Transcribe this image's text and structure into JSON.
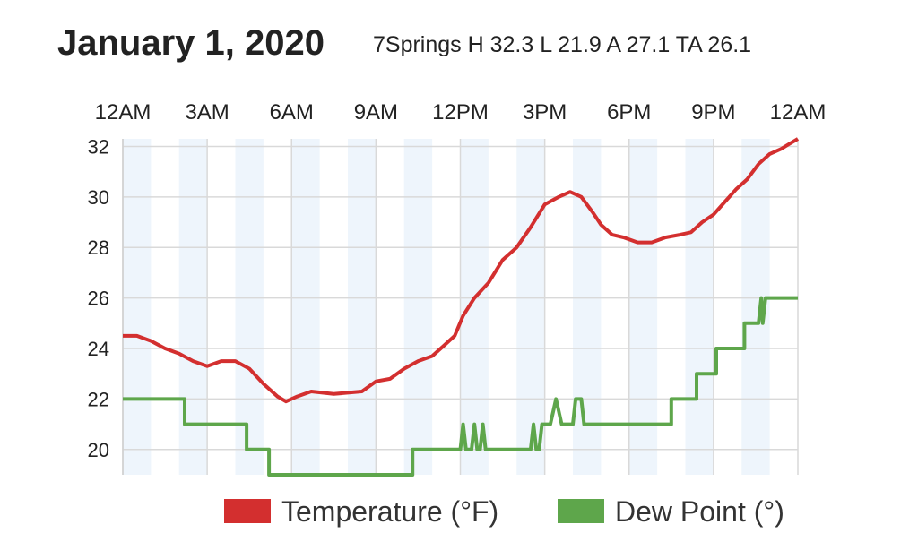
{
  "header": {
    "title": "January 1, 2020",
    "subtitle": "7Springs H 32.3 L 21.9 A 27.1 TA 26.1"
  },
  "colors": {
    "temperature": "#d32f2f",
    "dew_point": "#5ea64b",
    "band": "#eef5fc",
    "grid": "#d9d9d9"
  },
  "chart_data": {
    "type": "line",
    "title": "January 1, 2020",
    "subtitle": "7Springs H 32.3 L 21.9 A 27.1 TA 26.1",
    "x_ticks": [
      "12AM",
      "3AM",
      "6AM",
      "9AM",
      "12PM",
      "3PM",
      "6PM",
      "9PM",
      "12AM"
    ],
    "x_range_hours": [
      0,
      24
    ],
    "ylim": [
      19,
      32.3
    ],
    "y_ticks": [
      20,
      22,
      24,
      26,
      28,
      30,
      32
    ],
    "grid": true,
    "legend_position": "bottom",
    "series": [
      {
        "name": "Temperature (°F)",
        "color": "#d32f2f",
        "points": [
          [
            0,
            24.5
          ],
          [
            0.5,
            24.5
          ],
          [
            1,
            24.3
          ],
          [
            1.5,
            24.0
          ],
          [
            2,
            23.8
          ],
          [
            2.5,
            23.5
          ],
          [
            3,
            23.3
          ],
          [
            3.5,
            23.5
          ],
          [
            4,
            23.5
          ],
          [
            4.5,
            23.2
          ],
          [
            5,
            22.6
          ],
          [
            5.5,
            22.1
          ],
          [
            5.8,
            21.9
          ],
          [
            6.2,
            22.1
          ],
          [
            6.7,
            22.3
          ],
          [
            7.5,
            22.2
          ],
          [
            8.5,
            22.3
          ],
          [
            9,
            22.7
          ],
          [
            9.5,
            22.8
          ],
          [
            10,
            23.2
          ],
          [
            10.5,
            23.5
          ],
          [
            11,
            23.7
          ],
          [
            11.4,
            24.1
          ],
          [
            11.8,
            24.5
          ],
          [
            12.1,
            25.3
          ],
          [
            12.5,
            26.0
          ],
          [
            13,
            26.6
          ],
          [
            13.5,
            27.5
          ],
          [
            14,
            28.0
          ],
          [
            14.5,
            28.8
          ],
          [
            15,
            29.7
          ],
          [
            15.5,
            30.0
          ],
          [
            15.9,
            30.2
          ],
          [
            16.3,
            30.0
          ],
          [
            16.7,
            29.4
          ],
          [
            17,
            28.9
          ],
          [
            17.4,
            28.5
          ],
          [
            17.8,
            28.4
          ],
          [
            18.3,
            28.2
          ],
          [
            18.8,
            28.2
          ],
          [
            19.3,
            28.4
          ],
          [
            19.8,
            28.5
          ],
          [
            20.2,
            28.6
          ],
          [
            20.6,
            29.0
          ],
          [
            21,
            29.3
          ],
          [
            21.4,
            29.8
          ],
          [
            21.8,
            30.3
          ],
          [
            22.2,
            30.7
          ],
          [
            22.6,
            31.3
          ],
          [
            23,
            31.7
          ],
          [
            23.4,
            31.9
          ],
          [
            23.7,
            32.1
          ],
          [
            24,
            32.3
          ]
        ]
      },
      {
        "name": "Dew Point (°)",
        "color": "#5ea64b",
        "points": [
          [
            0,
            22
          ],
          [
            2.2,
            22
          ],
          [
            2.2,
            21
          ],
          [
            4.4,
            21
          ],
          [
            4.4,
            20
          ],
          [
            5.2,
            20
          ],
          [
            5.2,
            19
          ],
          [
            10.3,
            19
          ],
          [
            10.3,
            20
          ],
          [
            12,
            20
          ],
          [
            12.1,
            21
          ],
          [
            12.2,
            20
          ],
          [
            12.4,
            20
          ],
          [
            12.5,
            21
          ],
          [
            12.6,
            20
          ],
          [
            12.7,
            20
          ],
          [
            12.8,
            21
          ],
          [
            12.9,
            20
          ],
          [
            14.5,
            20
          ],
          [
            14.6,
            21
          ],
          [
            14.7,
            20
          ],
          [
            14.8,
            20
          ],
          [
            14.9,
            21
          ],
          [
            15.2,
            21
          ],
          [
            15.4,
            22
          ],
          [
            15.6,
            21
          ],
          [
            16,
            21
          ],
          [
            16.1,
            22
          ],
          [
            16.3,
            22
          ],
          [
            16.4,
            21
          ],
          [
            19.5,
            21
          ],
          [
            19.5,
            22
          ],
          [
            20.4,
            22
          ],
          [
            20.4,
            23
          ],
          [
            21.1,
            23
          ],
          [
            21.1,
            24
          ],
          [
            22.1,
            24
          ],
          [
            22.1,
            25
          ],
          [
            22.6,
            25
          ],
          [
            22.7,
            26
          ],
          [
            22.75,
            25
          ],
          [
            22.85,
            26
          ],
          [
            24,
            26
          ]
        ]
      }
    ]
  }
}
